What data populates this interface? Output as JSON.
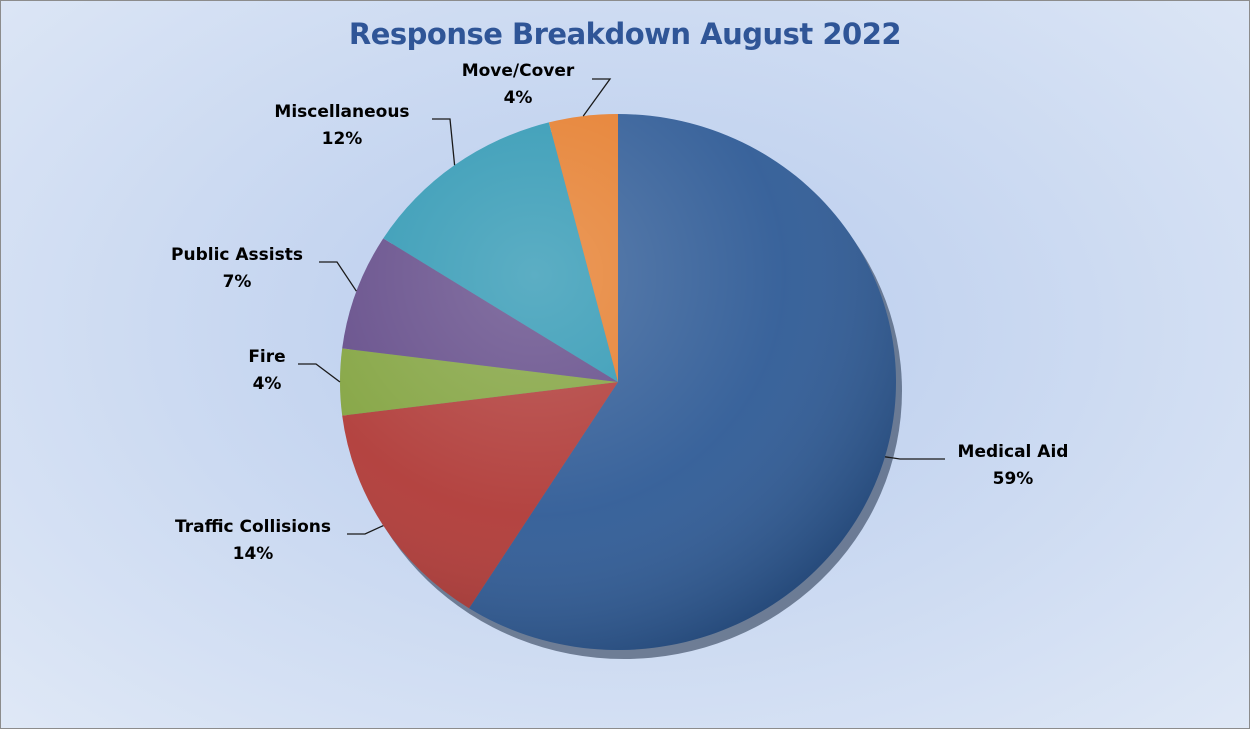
{
  "chart_data": {
    "type": "pie",
    "title": "Response Breakdown August 2022",
    "slices": [
      {
        "label": "Medical Aid",
        "value": 59,
        "pct_label": "59%",
        "color": "#2f5b96"
      },
      {
        "label": "Traffic Collisions",
        "value": 14,
        "pct_label": "14%",
        "color": "#b03a37"
      },
      {
        "label": "Fire",
        "value": 4,
        "pct_label": "4%",
        "color": "#82a33f"
      },
      {
        "label": "Public Assists",
        "value": 7,
        "pct_label": "7%",
        "color": "#624a88"
      },
      {
        "label": "Miscellaneous",
        "value": 12,
        "pct_label": "12%",
        "color": "#2e97b3"
      },
      {
        "label": "Move/Cover",
        "value": 4,
        "pct_label": "4%",
        "color": "#e57d2c"
      }
    ],
    "start_angle": 0,
    "direction": "clockwise",
    "legend": "none"
  }
}
